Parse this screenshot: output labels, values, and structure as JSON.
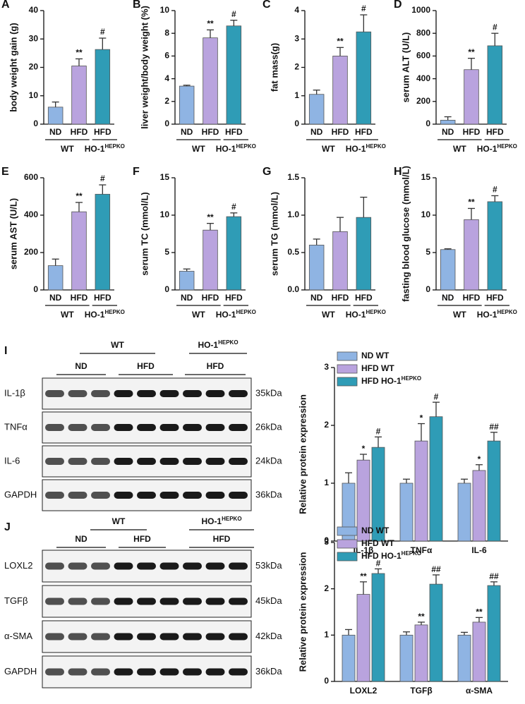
{
  "chart_data": [
    {
      "panel": "A",
      "type": "bar",
      "ylabel": "body weight gain (g)",
      "categories": [
        "ND",
        "HFD",
        "HFD"
      ],
      "groups": [
        {
          "label": "WT"
        },
        {
          "label": "HO-1",
          "sup": "HEPKO"
        }
      ],
      "values": [
        6,
        20.5,
        26.3
      ],
      "errors": [
        1.8,
        2.5,
        4
      ],
      "sig": [
        null,
        "**",
        "#"
      ],
      "colors": [
        "#8fb4e3",
        "#b9a3de",
        "#2f9cb6"
      ],
      "ylim": [
        0,
        40
      ],
      "yticks": [
        0,
        10,
        20,
        30,
        40
      ]
    },
    {
      "panel": "B",
      "type": "bar",
      "ylabel": "liver weight/body weight (%)",
      "categories": [
        "ND",
        "HFD",
        "HFD"
      ],
      "groups": [
        {
          "label": "WT"
        },
        {
          "label": "HO-1",
          "sup": "HEPKO"
        }
      ],
      "values": [
        3.35,
        7.6,
        8.65
      ],
      "errors": [
        0.08,
        0.7,
        0.5
      ],
      "sig": [
        null,
        "**",
        "#"
      ],
      "colors": [
        "#8fb4e3",
        "#b9a3de",
        "#2f9cb6"
      ],
      "ylim": [
        0,
        10
      ],
      "yticks": [
        0,
        2,
        4,
        6,
        8,
        10
      ]
    },
    {
      "panel": "C",
      "type": "bar",
      "ylabel": "fat mass(g)",
      "categories": [
        "ND",
        "HFD",
        "HFD"
      ],
      "groups": [
        {
          "label": "WT"
        },
        {
          "label": "HO-1",
          "sup": "HEPKO"
        }
      ],
      "values": [
        1.05,
        2.4,
        3.25
      ],
      "errors": [
        0.15,
        0.3,
        0.6
      ],
      "sig": [
        null,
        "**",
        "#"
      ],
      "colors": [
        "#8fb4e3",
        "#b9a3de",
        "#2f9cb6"
      ],
      "ylim": [
        0,
        4
      ],
      "yticks": [
        0,
        1,
        2,
        3,
        4
      ]
    },
    {
      "panel": "D",
      "type": "bar",
      "ylabel": "serum ALT (U/L)",
      "categories": [
        "ND",
        "HFD",
        "HFD"
      ],
      "groups": [
        {
          "label": "WT"
        },
        {
          "label": "HO-1",
          "sup": "HEPKO"
        }
      ],
      "values": [
        35,
        480,
        690
      ],
      "errors": [
        30,
        100,
        110
      ],
      "sig": [
        null,
        "**",
        "#"
      ],
      "colors": [
        "#8fb4e3",
        "#b9a3de",
        "#2f9cb6"
      ],
      "ylim": [
        0,
        1000
      ],
      "yticks": [
        0,
        200,
        400,
        600,
        800,
        1000
      ]
    },
    {
      "panel": "E",
      "type": "bar",
      "ylabel": "serum AST (U/L)",
      "categories": [
        "ND",
        "HFD",
        "HFD"
      ],
      "groups": [
        {
          "label": "WT"
        },
        {
          "label": "HO-1",
          "sup": "HEPKO"
        }
      ],
      "values": [
        130,
        418,
        512
      ],
      "errors": [
        35,
        50,
        50
      ],
      "sig": [
        null,
        "**",
        "#"
      ],
      "colors": [
        "#8fb4e3",
        "#b9a3de",
        "#2f9cb6"
      ],
      "ylim": [
        0,
        600
      ],
      "yticks": [
        0,
        200,
        400,
        600
      ]
    },
    {
      "panel": "F",
      "type": "bar",
      "ylabel": "serum TC (mmol/L)",
      "categories": [
        "ND",
        "HFD",
        "HFD"
      ],
      "groups": [
        {
          "label": "WT"
        },
        {
          "label": "HO-1",
          "sup": "HEPKO"
        }
      ],
      "values": [
        2.5,
        8,
        9.8
      ],
      "errors": [
        0.3,
        0.9,
        0.5
      ],
      "sig": [
        null,
        "**",
        "#"
      ],
      "colors": [
        "#8fb4e3",
        "#b9a3de",
        "#2f9cb6"
      ],
      "ylim": [
        0,
        15
      ],
      "yticks": [
        0,
        5,
        10,
        15
      ]
    },
    {
      "panel": "G",
      "type": "bar",
      "ylabel": "serum TG (mmol/L)",
      "categories": [
        "ND",
        "HFD",
        "HFD"
      ],
      "groups": [
        {
          "label": "WT"
        },
        {
          "label": "HO-1",
          "sup": "HEPKO"
        }
      ],
      "values": [
        0.6,
        0.78,
        0.97
      ],
      "errors": [
        0.08,
        0.19,
        0.27
      ],
      "sig": [
        null,
        null,
        null
      ],
      "colors": [
        "#8fb4e3",
        "#b9a3de",
        "#2f9cb6"
      ],
      "ylim": [
        0,
        1.5
      ],
      "yticks": [
        {
          "value": 0,
          "label": "0.0"
        },
        0.5,
        {
          "value": 1,
          "label": "1.0"
        },
        1.5
      ]
    },
    {
      "panel": "H",
      "type": "bar",
      "ylabel": "fasting blood glucose (mmol/L)",
      "categories": [
        "ND",
        "HFD",
        "HFD"
      ],
      "groups": [
        {
          "label": "WT"
        },
        {
          "label": "HO-1",
          "sup": "HEPKO"
        }
      ],
      "values": [
        5.4,
        9.4,
        11.8
      ],
      "errors": [
        0.1,
        1.5,
        0.8
      ],
      "sig": [
        null,
        "**",
        "#"
      ],
      "colors": [
        "#8fb4e3",
        "#b9a3de",
        "#2f9cb6"
      ],
      "ylim": [
        0,
        15
      ],
      "yticks": [
        0,
        5,
        10,
        15
      ]
    },
    {
      "type": "grouped_bar",
      "ylabel": "Relative protein expression",
      "categories": [
        "IL-1β",
        "TNFα",
        "IL-6"
      ],
      "ylim": [
        0,
        3
      ],
      "yticks": [
        0,
        1,
        2,
        3
      ],
      "series": [
        {
          "name": "ND WT",
          "color": "#8fb4e3",
          "values": [
            1.0,
            1.0,
            1.0
          ],
          "errors": [
            0.18,
            0.07,
            0.07
          ],
          "sig": [
            null,
            null,
            null
          ]
        },
        {
          "name": "HFD WT",
          "color": "#b9a3de",
          "values": [
            1.4,
            1.73,
            1.22
          ],
          "errors": [
            0.1,
            0.3,
            0.1
          ],
          "sig": [
            "*",
            "*",
            "*"
          ]
        },
        {
          "name": "HFD HO-1",
          "name_sup": "HEPKO",
          "color": "#2f9cb6",
          "values": [
            1.62,
            2.15,
            1.73
          ],
          "errors": [
            0.18,
            0.25,
            0.15
          ],
          "sig": [
            "#",
            "#",
            "##"
          ]
        }
      ]
    },
    {
      "type": "grouped_bar",
      "ylabel": "Relative protein expression",
      "categories": [
        "LOXL2",
        "TGFβ",
        "α-SMA"
      ],
      "ylim": [
        0,
        3
      ],
      "yticks": [
        0,
        1,
        2,
        3
      ],
      "series": [
        {
          "name": "ND WT",
          "color": "#8fb4e3",
          "values": [
            1.0,
            1.0,
            1.0
          ],
          "errors": [
            0.12,
            0.07,
            0.06
          ],
          "sig": [
            null,
            null,
            null
          ]
        },
        {
          "name": "HFD WT",
          "color": "#b9a3de",
          "values": [
            1.88,
            1.22,
            1.28
          ],
          "errors": [
            0.27,
            0.06,
            0.1
          ],
          "sig": [
            "**",
            "**",
            "**"
          ]
        },
        {
          "name": "HFD HO-1",
          "name_sup": "HEPKO",
          "color": "#2f9cb6",
          "values": [
            2.33,
            2.1,
            2.07
          ],
          "errors": [
            0.1,
            0.2,
            0.08
          ],
          "sig": [
            "#",
            "##",
            "##"
          ]
        }
      ]
    }
  ],
  "blots": [
    {
      "panel": "I",
      "groups": [
        {
          "label": "WT"
        },
        {
          "label": "HO-1",
          "sup": "HEPKO"
        }
      ],
      "subgroups": [
        "ND",
        "HFD",
        "HFD"
      ],
      "rows": [
        {
          "label": "IL-1β",
          "kda": "35kDa"
        },
        {
          "label": "TNFα",
          "kda": "26kDa"
        },
        {
          "label": "IL-6",
          "kda": "24kDa"
        },
        {
          "label": "GAPDH",
          "kda": "36kDa"
        }
      ]
    },
    {
      "panel": "J",
      "groups": [
        {
          "label": "WT"
        },
        {
          "label": "HO-1",
          "sup": "HEPKO"
        }
      ],
      "subgroups": [
        "ND",
        "HFD",
        "HFD"
      ],
      "rows": [
        {
          "label": "LOXL2",
          "kda": "53kDa"
        },
        {
          "label": "TGFβ",
          "kda": "45kDa"
        },
        {
          "label": "α-SMA",
          "kda": "42kDa"
        },
        {
          "label": "GAPDH",
          "kda": "36kDa"
        }
      ]
    }
  ]
}
